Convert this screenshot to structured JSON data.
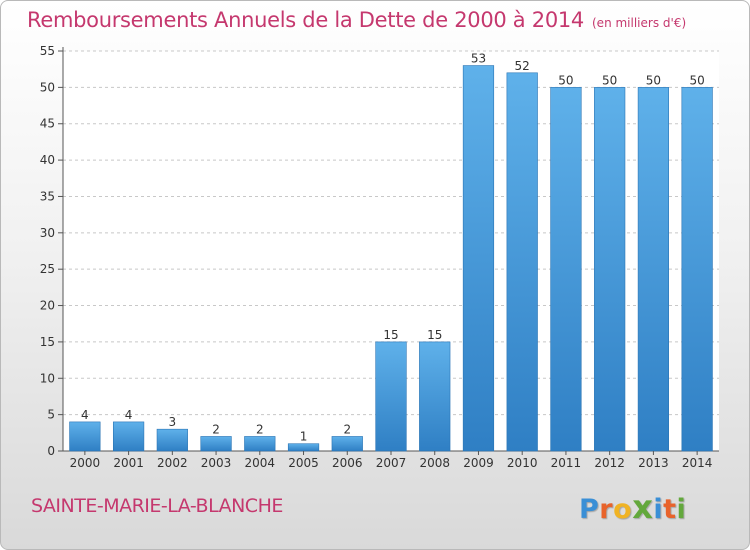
{
  "title": "Remboursements Annuels de la Dette de 2000 à 2014",
  "unit": "(en milliers d'€)",
  "commune": "SAINTE-MARIE-LA-BLANCHE",
  "logo": {
    "text": "Proxiti",
    "colors": [
      "#3a8fd6",
      "#e8632b",
      "#f0b324",
      "#63a83c",
      "#3a8fd6",
      "#e8632b",
      "#63a83c"
    ]
  },
  "colors": {
    "bar_top": "#5fb1ea",
    "bar_bottom": "#2f7fc4",
    "title": "#c5386e",
    "grid": "#c8c8c8"
  },
  "chart_data": {
    "type": "bar",
    "title": "Remboursements Annuels de la Dette de 2000 à 2014",
    "xlabel": "",
    "ylabel": "",
    "categories": [
      "2000",
      "2001",
      "2002",
      "2003",
      "2004",
      "2005",
      "2006",
      "2007",
      "2008",
      "2009",
      "2010",
      "2011",
      "2012",
      "2013",
      "2014"
    ],
    "values": [
      4,
      4,
      3,
      2,
      2,
      1,
      2,
      15,
      15,
      53,
      52,
      50,
      50,
      50,
      50
    ],
    "ylim": [
      0,
      55
    ],
    "yticks": [
      0,
      5,
      10,
      15,
      20,
      25,
      30,
      35,
      40,
      45,
      50,
      55
    ],
    "grid": true,
    "data_labels": true
  }
}
